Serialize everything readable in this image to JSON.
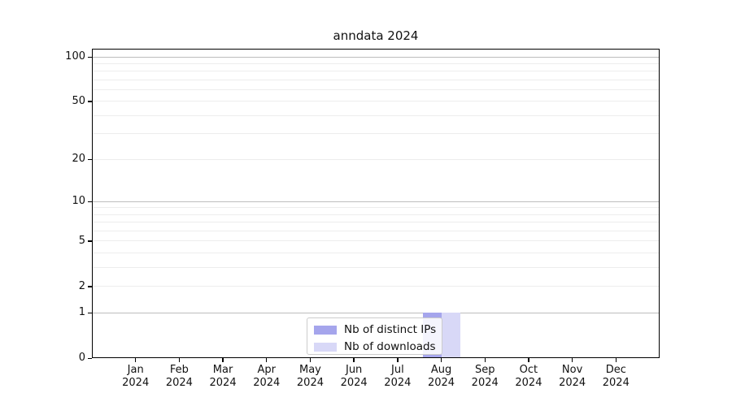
{
  "title": "anndata 2024",
  "chart_data": {
    "type": "bar",
    "title": "anndata 2024",
    "categories": [
      "Jan",
      "Feb",
      "Mar",
      "Apr",
      "May",
      "Jun",
      "Jul",
      "Aug",
      "Sep",
      "Oct",
      "Nov",
      "Dec"
    ],
    "category_year": "2024",
    "series": [
      {
        "name": "Nb of distinct IPs",
        "color": "#a5a5ec",
        "values": [
          0,
          0,
          0,
          0,
          0,
          0,
          0,
          1,
          0,
          0,
          0,
          0
        ]
      },
      {
        "name": "Nb of downloads",
        "color": "#d8d8f7",
        "values": [
          0,
          0,
          0,
          0,
          0,
          0,
          0,
          1,
          0,
          0,
          0,
          0
        ]
      }
    ],
    "yscale": "log1p",
    "yticks": [
      0,
      1,
      2,
      5,
      10,
      20,
      50,
      100
    ],
    "minor_yticks": [
      3,
      4,
      6,
      7,
      8,
      9,
      30,
      40,
      60,
      70,
      80,
      90
    ],
    "major_gridline_values": [
      1,
      10,
      100
    ],
    "ylim": [
      0,
      114
    ],
    "xlabel": "",
    "ylabel": "",
    "grid": true,
    "legend_position": "lower center",
    "colors": {
      "major_grid": "#bdbdbd",
      "minor_grid": "#ededed",
      "axis": "#000000",
      "text": "#111111"
    }
  }
}
